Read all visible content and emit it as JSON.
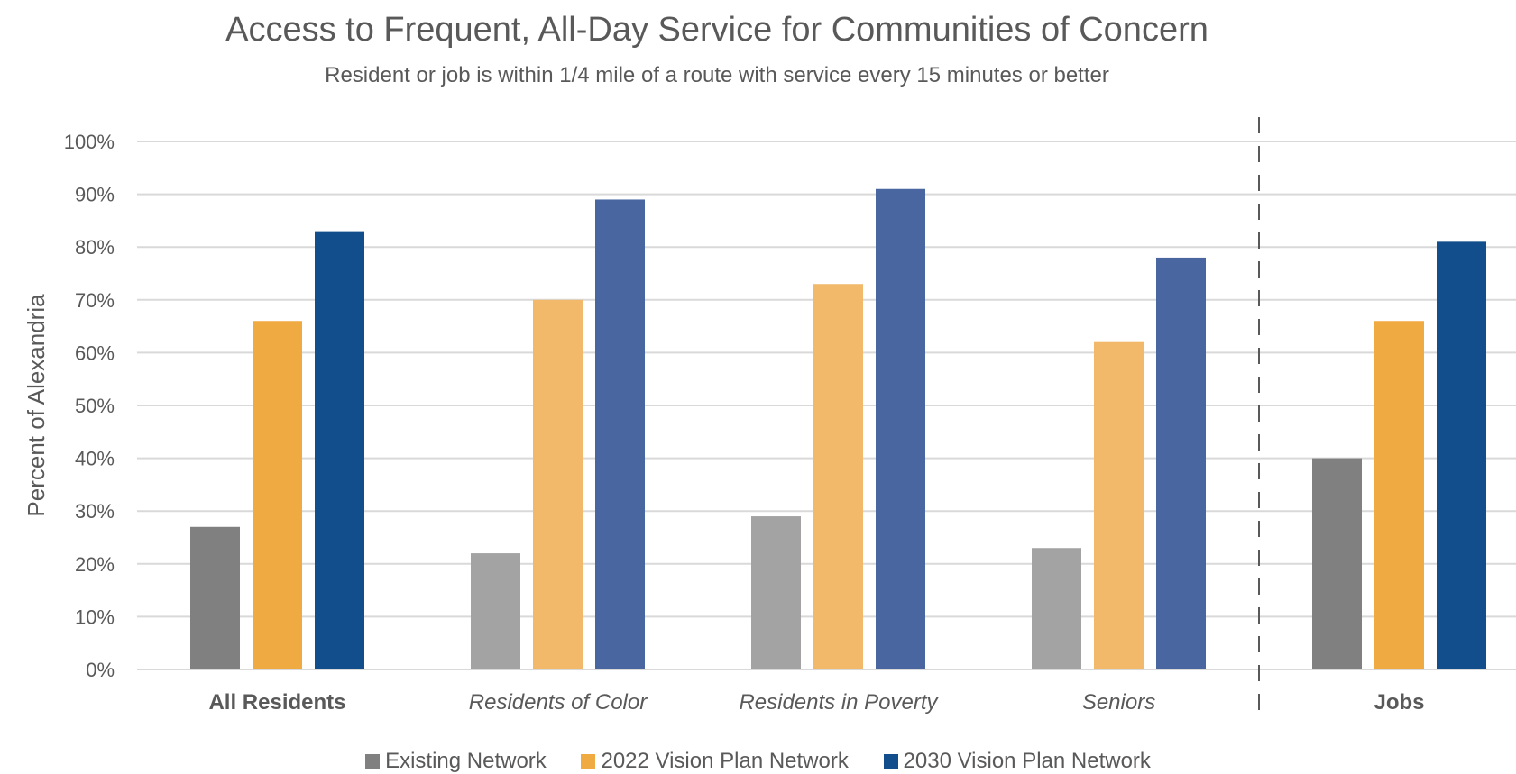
{
  "chart_data": {
    "type": "bar",
    "title": "Access to Frequent, All-Day Service for Communities of Concern",
    "subtitle": "Resident or job is within 1/4 mile of a route with service every 15 minutes or better",
    "ylabel": "Percent of Alexandria",
    "xlabel": "",
    "ylim": [
      0,
      100
    ],
    "yticks": [
      "0%",
      "10%",
      "20%",
      "30%",
      "40%",
      "50%",
      "60%",
      "70%",
      "80%",
      "90%",
      "100%"
    ],
    "categories": [
      {
        "label": "All Residents",
        "style": "bold"
      },
      {
        "label": "Residents of Color",
        "style": "italic"
      },
      {
        "label": "Residents in Poverty",
        "style": "italic"
      },
      {
        "label": "Seniors",
        "style": "italic"
      },
      {
        "label": "Jobs",
        "style": "bold"
      }
    ],
    "series": [
      {
        "name": "Existing Network",
        "values": [
          27,
          22,
          29,
          23,
          40
        ],
        "color": "#808080",
        "light_color": "#a3a3a3"
      },
      {
        "name": "2022 Vision Plan Network",
        "values": [
          66,
          70,
          73,
          62,
          66
        ],
        "color": "#efaa42",
        "light_color": "#f2b96b"
      },
      {
        "name": "2030 Vision Plan Network",
        "values": [
          83,
          89,
          91,
          78,
          81
        ],
        "color": "#134e8c",
        "light_color": "#4966a0"
      }
    ],
    "grid": true,
    "legend_position": "bottom",
    "separator": "dashed vertical line between Seniors and Jobs"
  }
}
